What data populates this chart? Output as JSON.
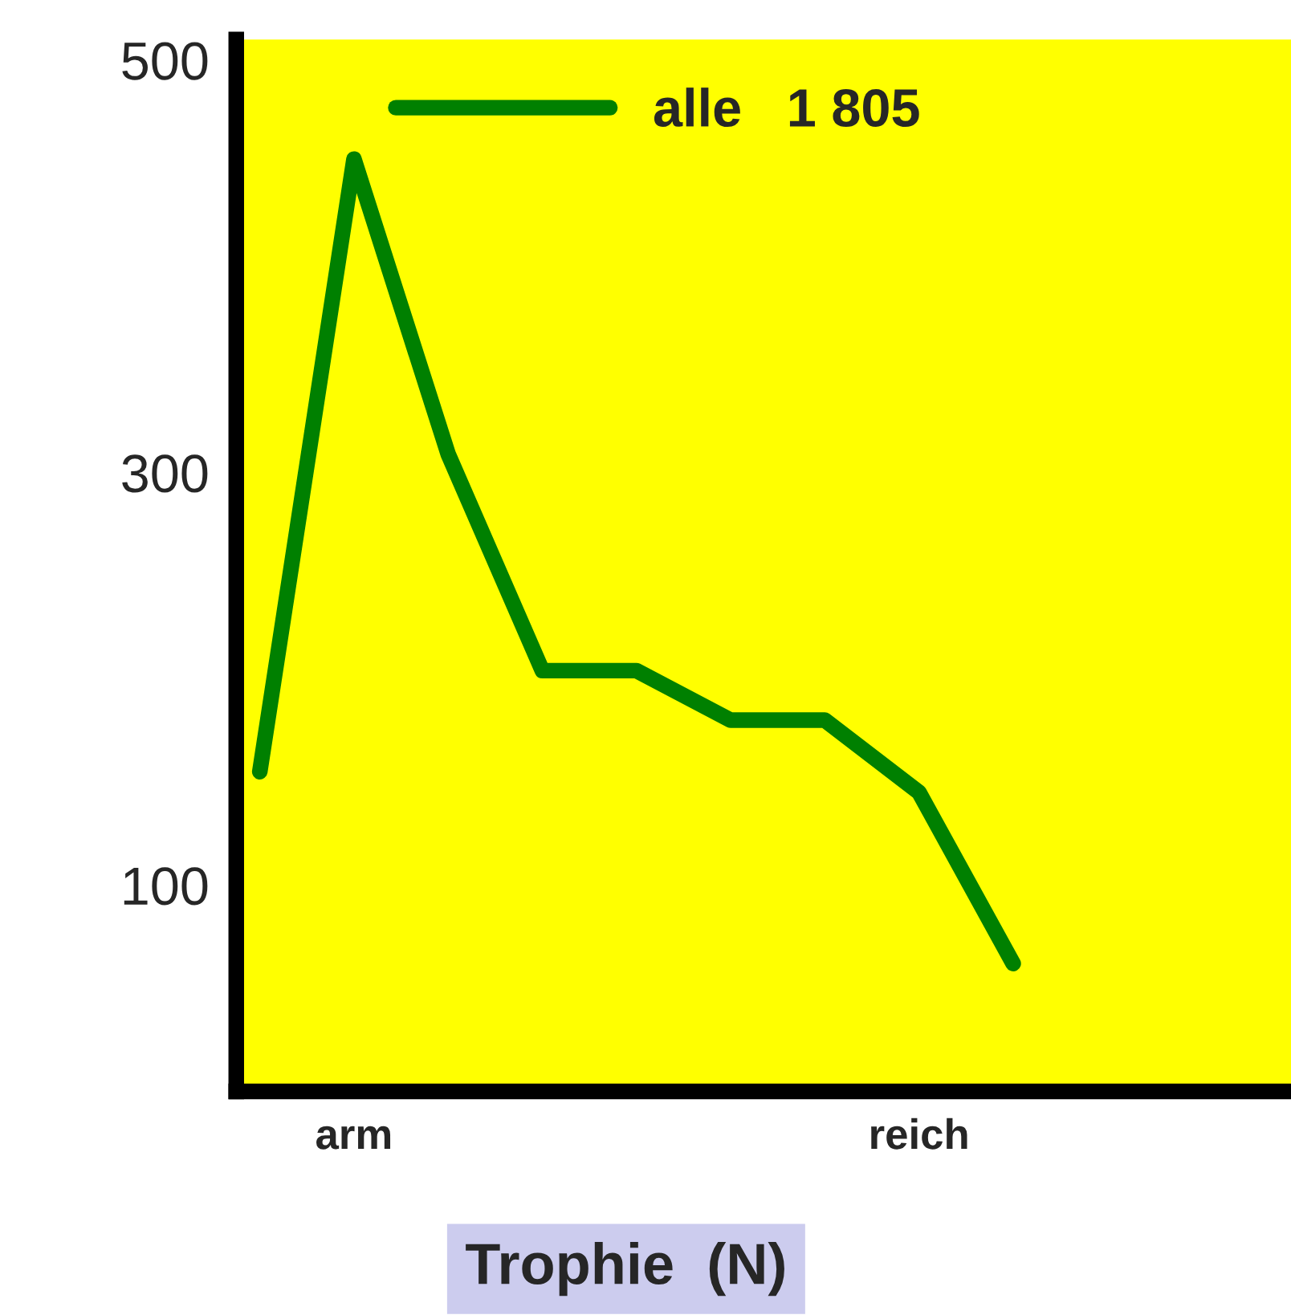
{
  "chart_data": {
    "type": "line",
    "xlabel": "Trophie  (N)",
    "categories": [
      null,
      "arm",
      null,
      null,
      null,
      null,
      null,
      "reich",
      null
    ],
    "series": [
      {
        "name": "alle   1 805",
        "color": "#008000",
        "values": [
          155,
          452,
          309,
          204,
          204,
          180,
          180,
          145,
          62
        ]
      }
    ],
    "ylim": [
      0,
      510
    ],
    "yticks": [
      100,
      300,
      500
    ],
    "grid": false,
    "legend": "top",
    "marker": "none",
    "line_style": "solid"
  }
}
